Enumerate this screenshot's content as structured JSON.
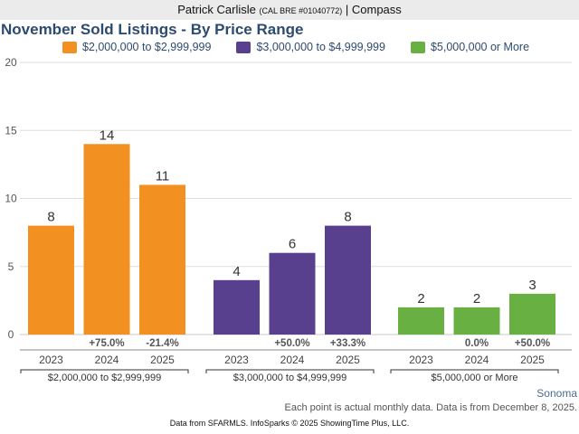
{
  "header": {
    "agent_name": "Patrick Carlisle",
    "license": "(CAL BRE #01040772)",
    "separator": "|",
    "brokerage": "Compass"
  },
  "footer": {
    "region": "Sonoma",
    "note": "Each point is actual monthly data. Data is from December 8, 2025.",
    "source": "Data from SFARMLS. InfoSparks © 2025 ShowingTime Plus, LLC."
  },
  "chart_data": {
    "type": "bar",
    "title": "November Sold Listings - By Price Range",
    "xlabel": "",
    "ylabel": "",
    "ylim": [
      0,
      20
    ],
    "yticks": [
      0,
      5,
      10,
      15,
      20
    ],
    "grid": true,
    "legend_position": "top-center",
    "categories": [
      "2023",
      "2024",
      "2025"
    ],
    "series": [
      {
        "name": "$2,000,000 to $2,999,999",
        "color": "#f29021",
        "values": [
          8,
          14,
          11
        ],
        "changes": [
          "",
          "+75.0%",
          "-21.4%"
        ]
      },
      {
        "name": "$3,000,000 to $4,999,999",
        "color": "#58408f",
        "values": [
          4,
          6,
          8
        ],
        "changes": [
          "",
          "+50.0%",
          "+33.3%"
        ]
      },
      {
        "name": "$5,000,000 or More",
        "color": "#69b042",
        "values": [
          2,
          2,
          3
        ],
        "changes": [
          "",
          "0.0%",
          "+50.0%"
        ]
      }
    ]
  }
}
